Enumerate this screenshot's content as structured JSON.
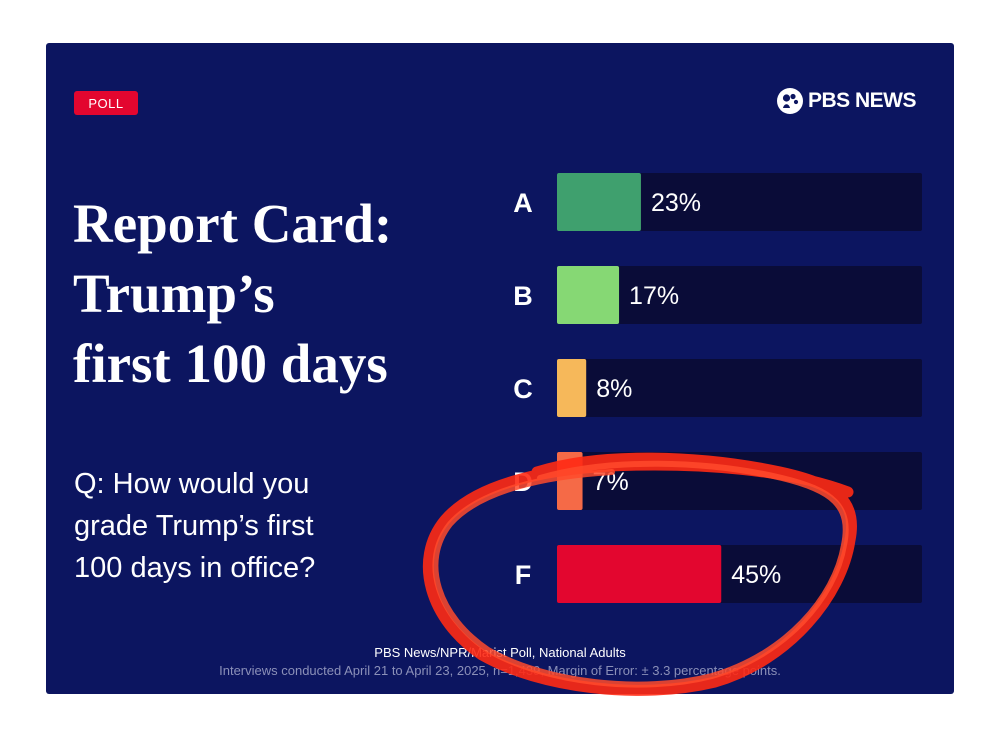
{
  "badge": {
    "label": "POLL"
  },
  "logo": {
    "text": "PBS NEWS",
    "icon": "pbs-heads-icon"
  },
  "headline": {
    "lines": [
      "Report Card:",
      "Trump’s",
      "first 100 days"
    ]
  },
  "question": {
    "lines": [
      "Q: How would you",
      "grade Trump’s first",
      "100 days in office?"
    ]
  },
  "footer": {
    "source": "PBS News/NPR/Marist Poll, National Adults",
    "notes": "Interviews conducted April 21 to April 23, 2025, n=1,439, Margin of Error: ± 3.3 percentage points."
  },
  "colors": {
    "background": "#0c1560",
    "track": "#0a0c38",
    "accent_red": "#e3062f",
    "annotation": "#ff2a14"
  },
  "chart_data": {
    "type": "bar",
    "orientation": "horizontal",
    "categories": [
      "A",
      "B",
      "C",
      "D",
      "F"
    ],
    "values": [
      23,
      17,
      8,
      7,
      45
    ],
    "value_labels": [
      "23%",
      "17%",
      "8%",
      "7%",
      "45%"
    ],
    "colors": [
      "#3fa06e",
      "#86d874",
      "#f6b85a",
      "#f56a47",
      "#e3062f"
    ],
    "xlim": [
      0,
      100
    ],
    "title": "",
    "xlabel": "",
    "ylabel": ""
  }
}
